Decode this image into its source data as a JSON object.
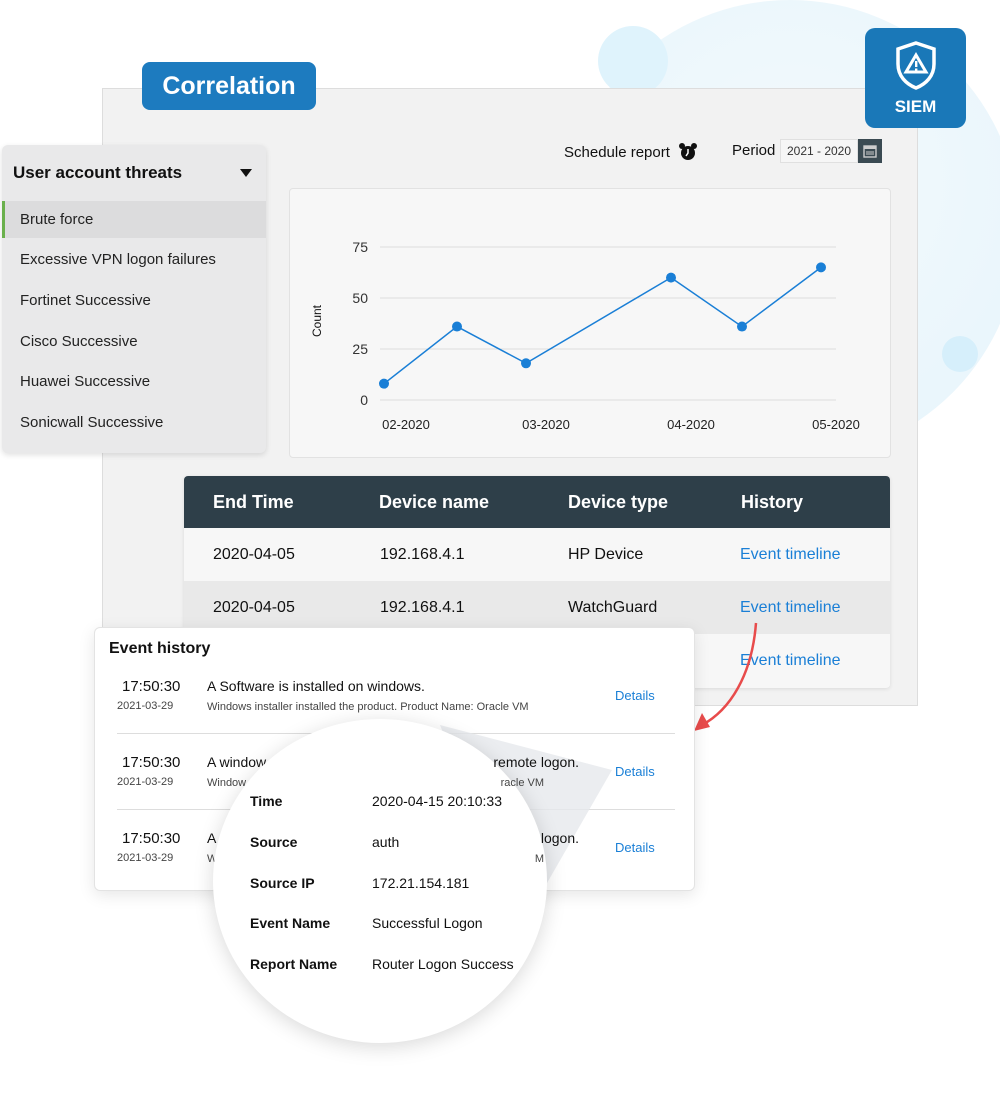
{
  "badge": {
    "title": "Correlation"
  },
  "product": {
    "label": "SIEM",
    "icon": "shield-alert-icon",
    "color": "#1a78b8"
  },
  "toolbar": {
    "schedule_label": "Schedule report",
    "period_label": "Period",
    "period_value": "2021 - 2020"
  },
  "sidebar": {
    "title": "User account threats",
    "items": [
      {
        "label": "Brute force",
        "selected": true
      },
      {
        "label": "Excessive VPN logon failures"
      },
      {
        "label": "Fortinet Successive"
      },
      {
        "label": "Cisco Successive"
      },
      {
        "label": "Huawei Successive"
      },
      {
        "label": "Sonicwall Successive"
      }
    ]
  },
  "chart_data": {
    "type": "line",
    "ylabel": "Count",
    "ylim": [
      0,
      75
    ],
    "yticks": [
      "0",
      "25",
      "50",
      "75"
    ],
    "xticks": [
      "02-2020",
      "03-2020",
      "04-2020",
      "05-2020"
    ],
    "values": [
      8,
      36,
      18,
      60,
      36,
      65
    ],
    "color": "#1a7fd6",
    "grid": true
  },
  "table": {
    "headers": [
      "End Time",
      "Device name",
      "Device type",
      "History"
    ],
    "rows": [
      [
        "2020-04-05",
        "192.168.4.1",
        "HP Device",
        "Event timeline"
      ],
      [
        "2020-04-05",
        "192.168.4.1",
        "WatchGuard",
        "Event timeline"
      ],
      [
        "",
        "",
        "",
        "Event timeline"
      ]
    ]
  },
  "event_history": {
    "title": "Event history",
    "details_label": "Details",
    "rows": [
      {
        "time": "17:50:30",
        "date": "2021-03-29",
        "title": "A Software is installed on windows.",
        "desc": "Windows installer installed the product. Product Name: Oracle VM",
        "title_end": "",
        "desc_end": ""
      },
      {
        "time": "17:50:30",
        "date": "2021-03-29",
        "title": "A window",
        "desc": "Window",
        "title_end": "remote logon.",
        "desc_end": "racle VM"
      },
      {
        "time": "17:50:30",
        "date": "2021-03-29",
        "title": "A",
        "desc": "W",
        "title_end": "logon.",
        "desc_end": "M"
      }
    ]
  },
  "detail": {
    "fields": [
      {
        "key": "Time",
        "value": "2020-04-15 20:10:33"
      },
      {
        "key": "Source",
        "value": "auth"
      },
      {
        "key": "Source IP",
        "value": "172.21.154.181"
      },
      {
        "key": "Event Name",
        "value": "Successful Logon"
      },
      {
        "key": "Report Name",
        "value": "Router Logon Success"
      }
    ]
  }
}
